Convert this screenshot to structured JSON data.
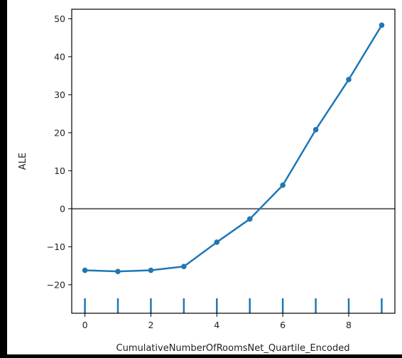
{
  "chart_data": {
    "type": "line",
    "title": "",
    "xlabel": "CumulativeNumberOfRoomsNet_Quartile_Encoded",
    "ylabel": "ALE",
    "x": [
      0,
      1,
      2,
      3,
      4,
      5,
      6,
      7,
      8,
      9
    ],
    "series": [
      {
        "values": [
          -16.2,
          -16.5,
          -16.2,
          -15.2,
          -8.8,
          -2.7,
          6.2,
          20.8,
          34.0,
          48.3
        ]
      }
    ],
    "xlim": [
      -0.4,
      9.4
    ],
    "ylim": [
      -27.5,
      52.5
    ],
    "xticks": [
      0,
      2,
      4,
      6,
      8
    ],
    "yticks": [
      -20,
      -10,
      0,
      10,
      20,
      30,
      40,
      50
    ],
    "reference_line_y": 0,
    "rug_x": [
      0,
      1,
      2,
      3,
      4,
      5,
      6,
      7,
      8,
      9
    ],
    "grid": false,
    "colors": {
      "line": "#1f77b4",
      "zero_line": "#666666",
      "rug": "#1f77b4"
    }
  }
}
